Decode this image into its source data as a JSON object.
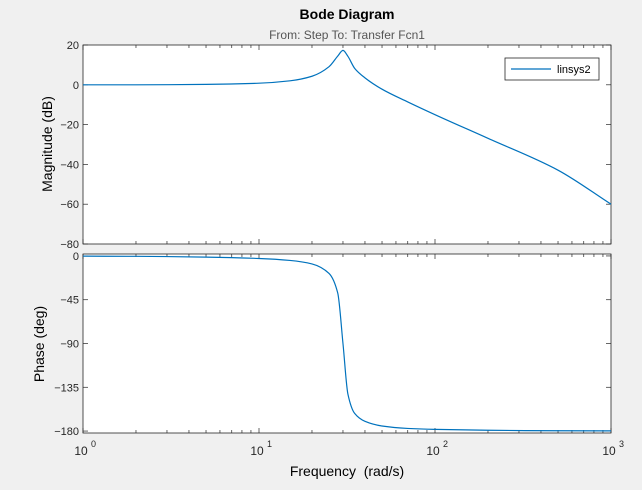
{
  "figure": {
    "title": "Bode Diagram",
    "subtitle": "From: Step  To: Transfer Fcn1",
    "background_color": "#f0f0f0",
    "axes_color": "#ffffff",
    "line_color": "#0072bd"
  },
  "chart_data": [
    {
      "type": "line",
      "name": "magnitude",
      "xscale": "log",
      "xlim": [
        1,
        1000
      ],
      "ylim": [
        -80,
        20
      ],
      "ylabel": "Magnitude (dB)",
      "yticks": [
        20,
        0,
        -20,
        -40,
        -60,
        -80
      ],
      "ytick_labels": [
        "20",
        "0",
        "−20",
        "−40",
        "−60",
        "−80"
      ],
      "legend": {
        "entries": [
          "linsys2"
        ],
        "placement": "top-right"
      },
      "series": [
        {
          "name": "linsys2",
          "x": [
            1,
            2,
            5,
            10,
            15,
            20,
            25,
            28,
            30,
            32,
            35,
            40,
            50,
            70,
            100,
            200,
            500,
            1000
          ],
          "y": [
            0.0,
            0.0,
            0.2,
            0.8,
            2.0,
            4.3,
            9.1,
            14.4,
            17.3,
            14.3,
            8.2,
            3.5,
            -2.2,
            -8.6,
            -15.0,
            -26.9,
            -42.9,
            -60.0
          ]
        }
      ]
    },
    {
      "type": "line",
      "name": "phase",
      "xscale": "log",
      "xlim": [
        1,
        1000
      ],
      "ylim": [
        -182,
        2
      ],
      "ylabel": "Phase (deg)",
      "xlabel": "Frequency  (rad/s)",
      "yticks": [
        0,
        -45,
        -90,
        -135,
        -180
      ],
      "ytick_labels": [
        "0",
        "−45",
        "−90",
        "−135",
        "−180"
      ],
      "xticks": [
        1,
        10,
        100,
        1000
      ],
      "xtick_labels": [
        {
          "base": "10",
          "exp": "0"
        },
        {
          "base": "10",
          "exp": "1"
        },
        {
          "base": "10",
          "exp": "2"
        },
        {
          "base": "10",
          "exp": "3"
        }
      ],
      "series": [
        {
          "name": "linsys2",
          "x": [
            1,
            2,
            5,
            10,
            15,
            20,
            25,
            28,
            30,
            32,
            35,
            40,
            50,
            70,
            100,
            200,
            500,
            1000
          ],
          "y": [
            -0.2,
            -0.4,
            -1.2,
            -2.6,
            -4.6,
            -8.2,
            -18.0,
            -38.0,
            -90.0,
            -142.0,
            -162.0,
            -170.0,
            -174.8,
            -177.3,
            -178.3,
            -179.2,
            -179.7,
            -179.8
          ]
        }
      ]
    }
  ]
}
